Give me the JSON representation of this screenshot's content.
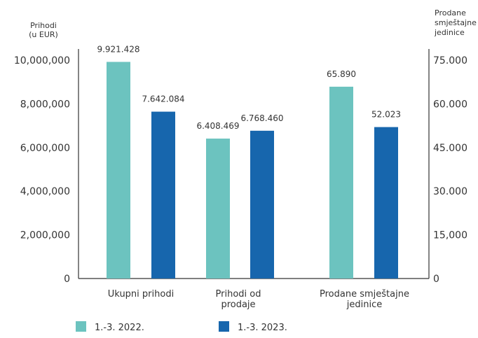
{
  "chart_data": {
    "type": "bar",
    "title": "",
    "categories": [
      "Ukupni prihodi",
      "Prihodi od prodaje",
      "Prodane smještajne jedinice"
    ],
    "category_lines": [
      [
        "Ukupni prihodi"
      ],
      [
        "Prihodi od",
        "prodaje"
      ],
      [
        "Prodane smještajne",
        "jedinice"
      ]
    ],
    "left_axis": {
      "title_lines": [
        "Prihodi",
        "(u EUR)"
      ],
      "range": [
        0,
        10000000
      ],
      "ticks": [
        0,
        2000000,
        4000000,
        6000000,
        8000000,
        10000000
      ],
      "tick_labels": [
        "0",
        "2,000,000",
        "4,000,000",
        "6,000,000",
        "8,000,000",
        "10,000,000"
      ]
    },
    "right_axis": {
      "title_lines": [
        "Prodane",
        "smještajne",
        "jedinice"
      ],
      "range": [
        0,
        75000
      ],
      "ticks": [
        0,
        15000,
        30000,
        45000,
        60000,
        75000
      ],
      "tick_labels": [
        "0",
        "15,000",
        "30.000",
        "45.000",
        "60.000",
        "75.000"
      ]
    },
    "series": [
      {
        "name": "1.-3. 2022.",
        "color": "#6cc3bf",
        "values": [
          9921428,
          6408469,
          65890
        ],
        "value_labels": [
          "9.921.428",
          "6.408.469",
          "65.890"
        ],
        "axis": [
          "left",
          "left",
          "right"
        ]
      },
      {
        "name": "1.-3. 2023.",
        "color": "#1766ad",
        "values": [
          7642084,
          6768460,
          52023
        ],
        "value_labels": [
          "7.642.084",
          "6.768.460",
          "52.023"
        ],
        "axis": [
          "left",
          "left",
          "right"
        ]
      }
    ],
    "grid": false,
    "legend_position": "bottom-left"
  }
}
